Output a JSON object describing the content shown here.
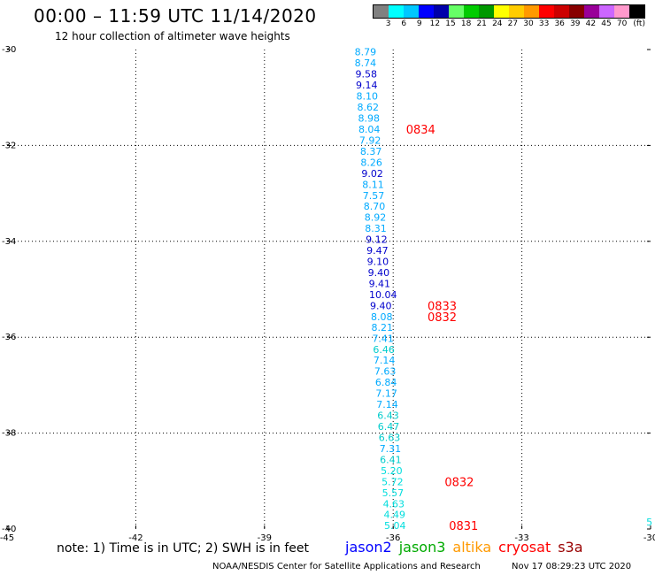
{
  "header": {
    "title": "00:00 – 11:59 UTC 11/14/2020",
    "subtitle": "12 hour collection of altimeter wave heights"
  },
  "colorbar": {
    "colors": [
      "#808080",
      "#00ffff",
      "#00c8ff",
      "#0000ff",
      "#0000aa",
      "#66ff66",
      "#00cc00",
      "#009900",
      "#ffff00",
      "#ffcc00",
      "#ff9900",
      "#ff0000",
      "#cc0000",
      "#880000",
      "#990099",
      "#cc66ff",
      "#ff99cc",
      "#000000"
    ],
    "labels": [
      "3",
      "6",
      "9",
      "12",
      "15",
      "18",
      "21",
      "24",
      "27",
      "30",
      "33",
      "36",
      "39",
      "42",
      "45",
      "70",
      "(ft)"
    ]
  },
  "footer": {
    "note": "note: 1) Time is in UTC; 2) SWH is in feet",
    "satellites": [
      {
        "name": "jason2",
        "color": "#0000ff"
      },
      {
        "name": "jason3",
        "color": "#00aa00"
      },
      {
        "name": "altika",
        "color": "#ff9900"
      },
      {
        "name": "cryosat",
        "color": "#ff0000"
      },
      {
        "name": "s3a",
        "color": "#990000"
      }
    ],
    "credit": "NOAA/NESDIS Center for Satellite Applications and Research",
    "timestamp": "Nov 17 08:29:23 UTC 2020"
  },
  "chart_data": {
    "type": "scatter",
    "xlim": [
      -45,
      -30
    ],
    "ylim": [
      -40,
      -30
    ],
    "x_ticks": [
      "-45",
      "-42",
      "-39",
      "-36",
      "-33",
      "-30"
    ],
    "y_ticks": [
      "-30",
      "-32",
      "-34",
      "-36",
      "-38",
      "-40"
    ],
    "grid": true,
    "points": [
      {
        "lon": -36.9,
        "lat": -30.05,
        "label": "8.79",
        "color": "#00aaff"
      },
      {
        "lon": -36.9,
        "lat": -30.28,
        "label": "8.74",
        "color": "#00aaff"
      },
      {
        "lon": -36.88,
        "lat": -30.51,
        "label": "9.58",
        "color": "#0000cc"
      },
      {
        "lon": -36.87,
        "lat": -30.74,
        "label": "9.14",
        "color": "#0000cc"
      },
      {
        "lon": -36.86,
        "lat": -30.97,
        "label": "8.10",
        "color": "#00aaff"
      },
      {
        "lon": -36.84,
        "lat": -31.2,
        "label": "8.62",
        "color": "#00aaff"
      },
      {
        "lon": -36.82,
        "lat": -31.43,
        "label": "8.98",
        "color": "#00aaff"
      },
      {
        "lon": -36.81,
        "lat": -31.66,
        "label": "8.04",
        "color": "#00aaff"
      },
      {
        "lon": -36.79,
        "lat": -31.89,
        "label": "7.92",
        "color": "#00aaff"
      },
      {
        "lon": -36.77,
        "lat": -32.12,
        "label": "8.37",
        "color": "#00aaff"
      },
      {
        "lon": -36.76,
        "lat": -32.35,
        "label": "8.26",
        "color": "#00aaff"
      },
      {
        "lon": -36.74,
        "lat": -32.58,
        "label": "9.02",
        "color": "#0000cc"
      },
      {
        "lon": -36.72,
        "lat": -32.81,
        "label": "8.11",
        "color": "#00aaff"
      },
      {
        "lon": -36.71,
        "lat": -33.04,
        "label": "7.57",
        "color": "#00aaff"
      },
      {
        "lon": -36.69,
        "lat": -33.27,
        "label": "8.70",
        "color": "#00aaff"
      },
      {
        "lon": -36.67,
        "lat": -33.5,
        "label": "8.92",
        "color": "#00aaff"
      },
      {
        "lon": -36.66,
        "lat": -33.73,
        "label": "8.31",
        "color": "#00aaff"
      },
      {
        "lon": -36.64,
        "lat": -33.96,
        "label": "9.12",
        "color": "#0000cc"
      },
      {
        "lon": -36.62,
        "lat": -34.19,
        "label": "9.47",
        "color": "#0000cc"
      },
      {
        "lon": -36.61,
        "lat": -34.42,
        "label": "9.10",
        "color": "#0000cc"
      },
      {
        "lon": -36.59,
        "lat": -34.65,
        "label": "9.40",
        "color": "#0000cc"
      },
      {
        "lon": -36.57,
        "lat": -34.88,
        "label": "9.41",
        "color": "#0000cc"
      },
      {
        "lon": -36.56,
        "lat": -35.11,
        "label": "10.04",
        "color": "#0000cc"
      },
      {
        "lon": -36.54,
        "lat": -35.34,
        "label": "9.40",
        "color": "#0000cc"
      },
      {
        "lon": -36.52,
        "lat": -35.57,
        "label": "8.08",
        "color": "#00aaff"
      },
      {
        "lon": -36.51,
        "lat": -35.79,
        "label": "8.21",
        "color": "#00aaff"
      },
      {
        "lon": -36.49,
        "lat": -36.02,
        "label": "7.41",
        "color": "#00aaff"
      },
      {
        "lon": -36.47,
        "lat": -36.25,
        "label": "6.46",
        "color": "#00cccc"
      },
      {
        "lon": -36.46,
        "lat": -36.48,
        "label": "7.14",
        "color": "#00aaff"
      },
      {
        "lon": -36.44,
        "lat": -36.71,
        "label": "7.63",
        "color": "#00aaff"
      },
      {
        "lon": -36.42,
        "lat": -36.94,
        "label": "6.84",
        "color": "#00aaff"
      },
      {
        "lon": -36.41,
        "lat": -37.17,
        "label": "7.17",
        "color": "#00aaff"
      },
      {
        "lon": -36.39,
        "lat": -37.4,
        "label": "7.14",
        "color": "#00aaff"
      },
      {
        "lon": -36.37,
        "lat": -37.63,
        "label": "6.43",
        "color": "#00cccc"
      },
      {
        "lon": -36.36,
        "lat": -37.86,
        "label": "6.47",
        "color": "#00cccc"
      },
      {
        "lon": -36.34,
        "lat": -38.09,
        "label": "6.63",
        "color": "#00cccc"
      },
      {
        "lon": -36.32,
        "lat": -38.32,
        "label": "7.31",
        "color": "#00aaff"
      },
      {
        "lon": -36.31,
        "lat": -38.55,
        "label": "6.41",
        "color": "#00cccc"
      },
      {
        "lon": -36.29,
        "lat": -38.78,
        "label": "5.20",
        "color": "#00dddd"
      },
      {
        "lon": -36.27,
        "lat": -39.01,
        "label": "5.72",
        "color": "#00dddd"
      },
      {
        "lon": -36.26,
        "lat": -39.24,
        "label": "5.57",
        "color": "#00dddd"
      },
      {
        "lon": -36.24,
        "lat": -39.47,
        "label": "4.63",
        "color": "#00dddd"
      },
      {
        "lon": -36.22,
        "lat": -39.7,
        "label": "4.49",
        "color": "#00dddd"
      },
      {
        "lon": -36.21,
        "lat": -39.93,
        "label": "5.04",
        "color": "#00dddd"
      }
    ],
    "time_labels": [
      {
        "lon": -35.7,
        "lat": -31.66,
        "label": "0834",
        "color": "#ff0000"
      },
      {
        "lon": -35.2,
        "lat": -35.34,
        "label": "0833",
        "color": "#ff0000"
      },
      {
        "lon": -35.2,
        "lat": -35.57,
        "label": "0832",
        "color": "#ff0000"
      },
      {
        "lon": -34.8,
        "lat": -39.01,
        "label": "0832",
        "color": "#ff0000"
      },
      {
        "lon": -34.7,
        "lat": -39.93,
        "label": "0831",
        "color": "#ff0000"
      }
    ],
    "edge_label": {
      "lon": -30.1,
      "lat": -39.93,
      "label": "5",
      "color": "#00dddd"
    }
  }
}
